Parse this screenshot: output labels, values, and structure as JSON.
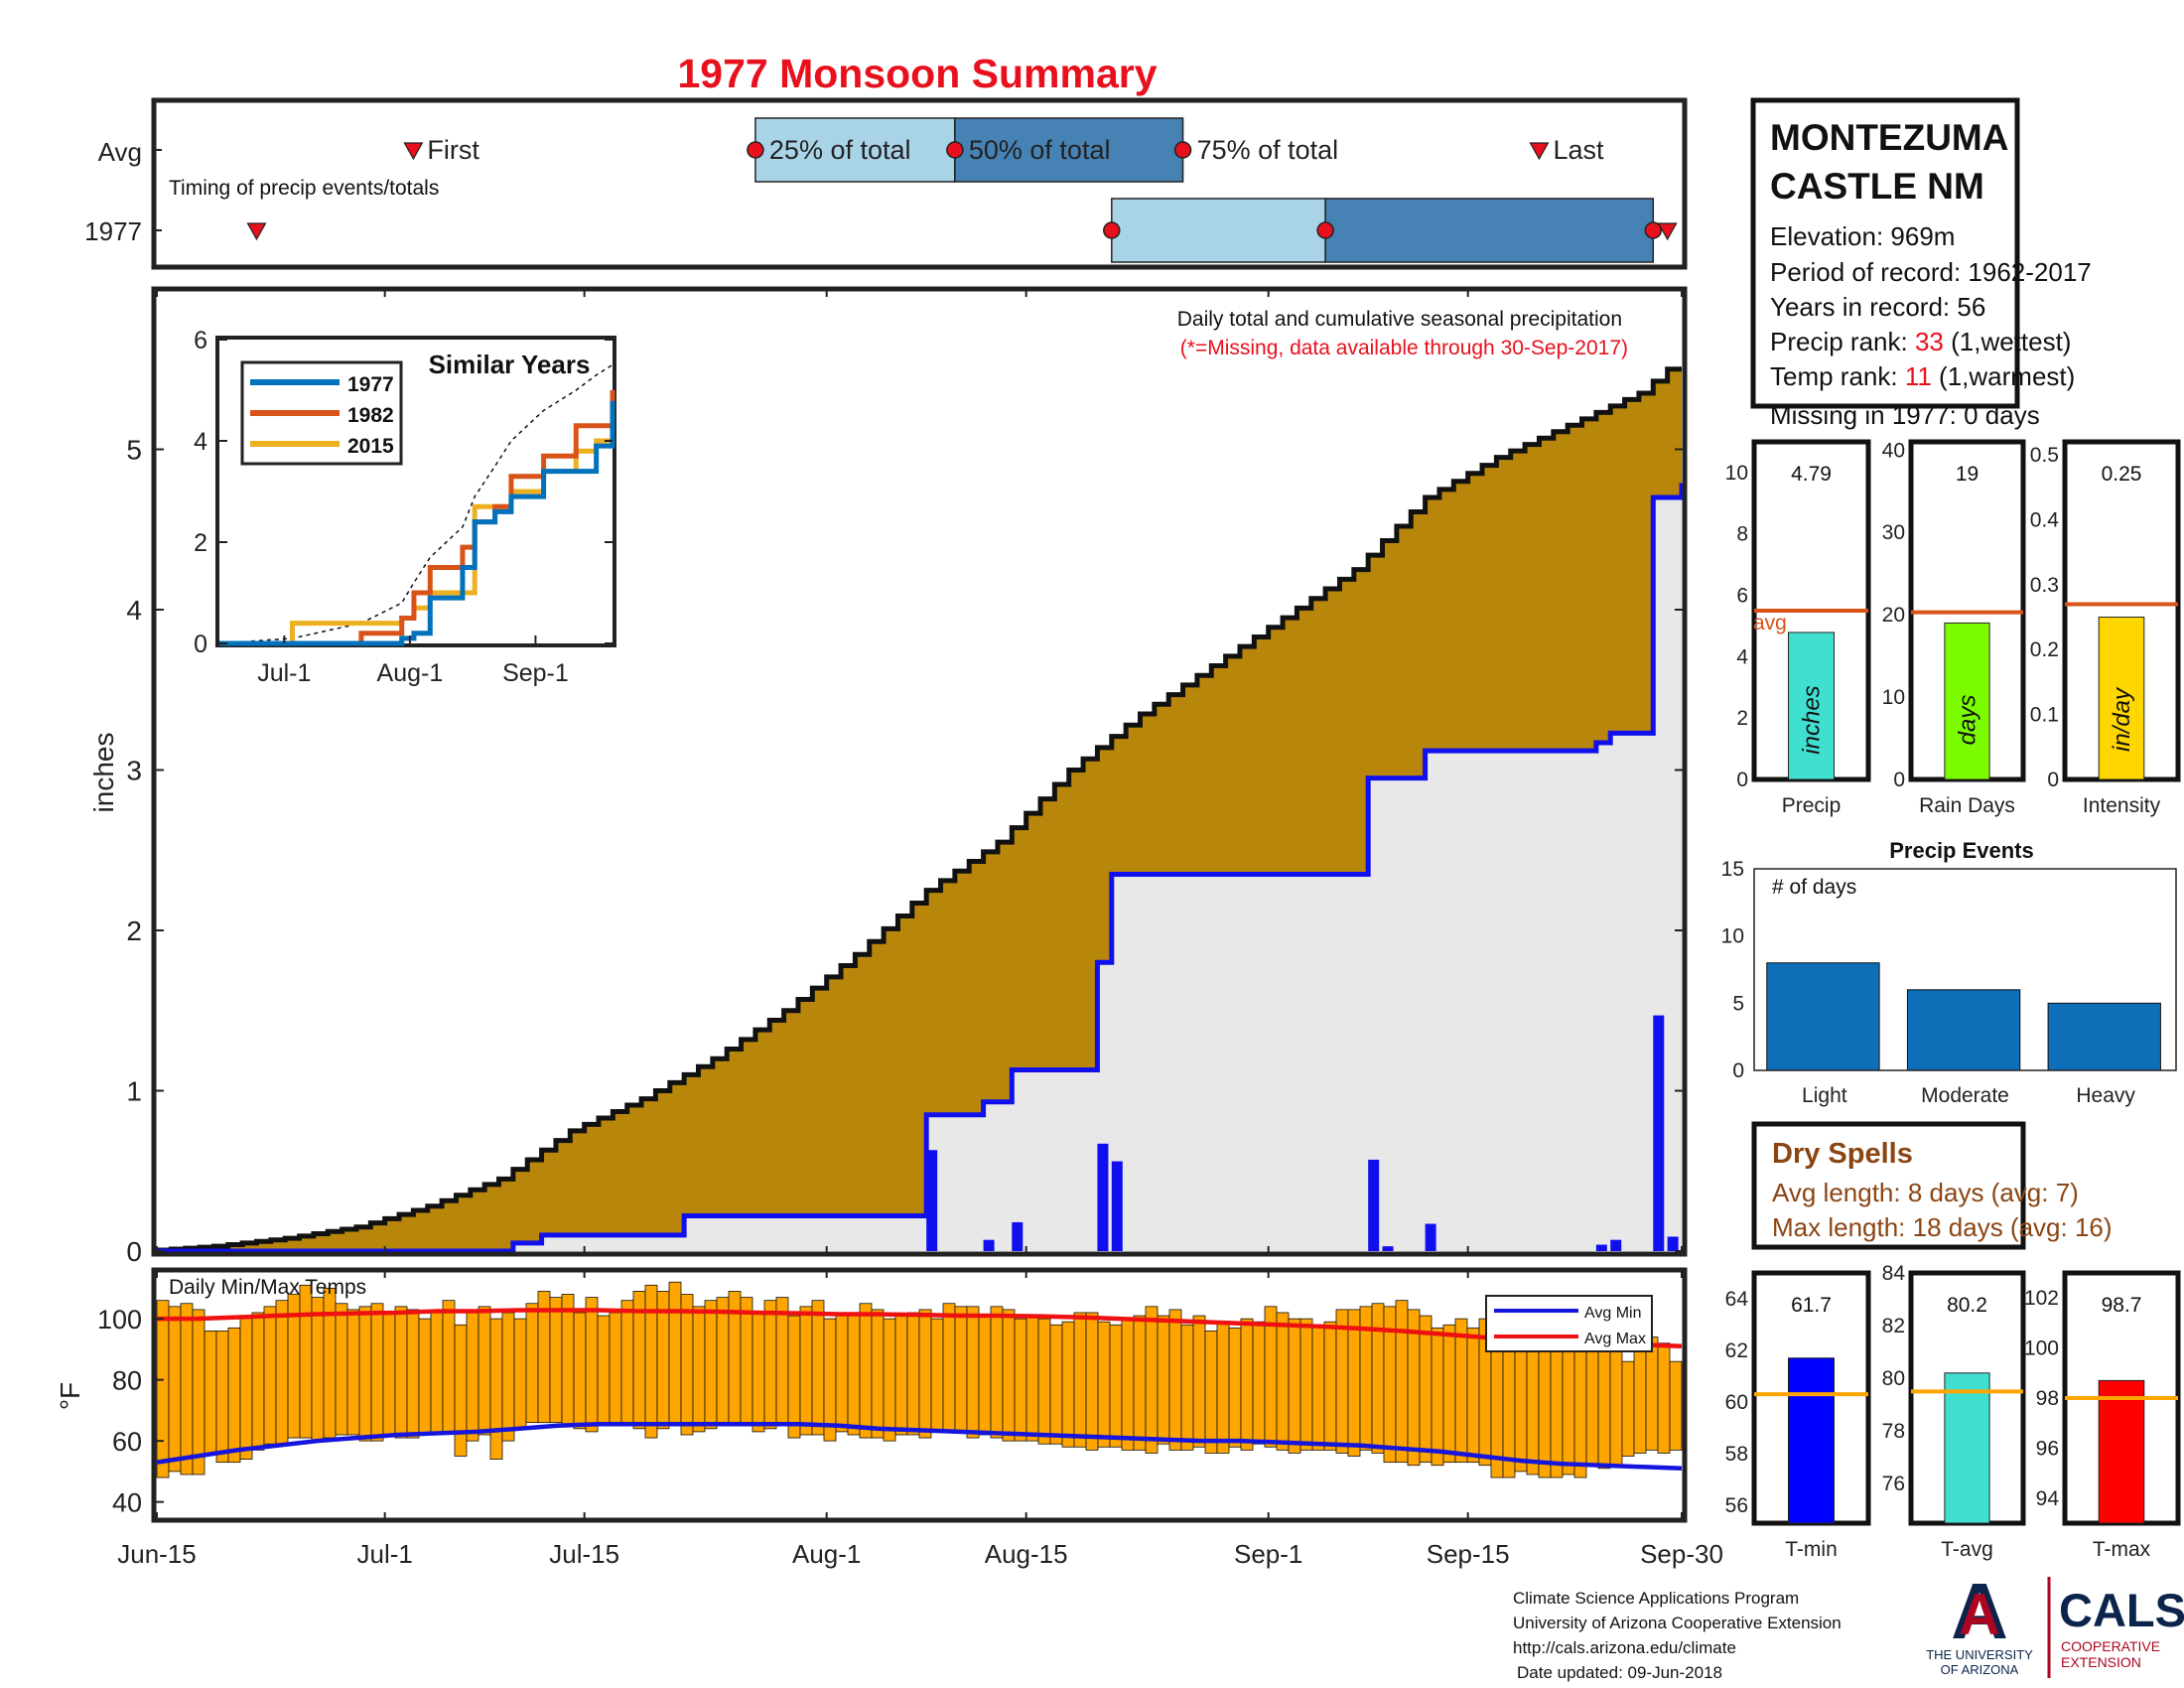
{
  "title": "1977 Monsoon Summary",
  "colors": {
    "title": "#e8101c",
    "accent_red": "#e8101c",
    "brown_fill": "#b8860b",
    "gray_fill": "#e8e8e8",
    "blue_line": "#1010ee",
    "timing_light": "#a9d4e8",
    "timing_dark": "#4682b4",
    "temp_bar": "#ffa500",
    "avg_max_line": "#ee1111",
    "avg_min_line": "#1515dd",
    "avg_marker": "#d95319",
    "dry_spell_text": "#8b4513",
    "event_bar": "#0e6fb8",
    "footer_blue": "#0c234b",
    "footer_red": "#ab0520",
    "sim_1977": "#0072bd",
    "sim_1982": "#d95319",
    "sim_2015": "#edb120"
  },
  "timing": {
    "row_labels": [
      "Avg",
      "1977"
    ],
    "caption": "Timing of precip events/totals",
    "first_label": "First",
    "q25_label": "25% of total",
    "q50_label": "50% of total",
    "q75_label": "75% of total",
    "last_label": "Last",
    "avg": {
      "first": "2017-07-03",
      "q25": "2017-07-27",
      "q50": "2017-08-10",
      "q75": "2017-08-26",
      "last": "2017-09-20"
    },
    "year": {
      "first": "2017-06-22",
      "q25": "2017-08-21",
      "q50": "2017-09-05",
      "q75": "2017-09-28",
      "last": "2017-09-29"
    }
  },
  "main_chart": {
    "subtitle": "Daily total and cumulative seasonal precipitation",
    "missing_note": "(*=Missing, data available through 30-Sep-2017)",
    "ylabel": "inches",
    "yticks": [
      "0",
      "1",
      "2",
      "3",
      "4",
      "5"
    ],
    "ylim": [
      0,
      6.0
    ],
    "xticks": [
      "Jun-15",
      "Jul-1",
      "Jul-15",
      "Aug-1",
      "Aug-15",
      "Sep-1",
      "Sep-15",
      "Sep-30"
    ]
  },
  "inset": {
    "title": "Similar Years",
    "yticks": [
      "0",
      "2",
      "4",
      "6"
    ],
    "xticks": [
      "Jul-1",
      "Aug-1",
      "Sep-1"
    ],
    "legend": [
      "1977",
      "1982",
      "2015"
    ]
  },
  "temps": {
    "label": "Daily Min/Max Temps",
    "ylabel": "°F",
    "yticks": [
      "40",
      "60",
      "80",
      "100"
    ],
    "ylim": [
      35,
      115
    ],
    "legend_min": "Avg Min",
    "legend_max": "Avg Max"
  },
  "station": {
    "name_line1": "MONTEZUMA",
    "name_line2": "CASTLE NM",
    "elevation": "Elevation: 969m",
    "period": "Period of record: 1962-2017",
    "years": "Years in record: 56",
    "precip_rank_label": "Precip rank: ",
    "precip_rank_value": "33",
    "precip_rank_suffix": " (1,wettest)",
    "temp_rank_label": "Temp rank: ",
    "temp_rank_value": "11",
    "temp_rank_suffix": " (1,warmest)",
    "missing": "Missing in 1977: 0 days"
  },
  "mini_precip": {
    "value_text": "4.79",
    "unit": "inches",
    "label": "Precip",
    "avg_label": "avg",
    "yticks": [
      "0",
      "2",
      "4",
      "6",
      "8",
      "10"
    ]
  },
  "mini_raindays": {
    "value_text": "19",
    "unit": "days",
    "label": "Rain Days",
    "yticks": [
      "0",
      "10",
      "20",
      "30",
      "40"
    ]
  },
  "mini_intensity": {
    "value_text": "0.25",
    "unit": "in/day",
    "label": "Intensity",
    "yticks": [
      "0",
      "0.1",
      "0.2",
      "0.3",
      "0.4",
      "0.5"
    ]
  },
  "precip_events": {
    "title": "Precip Events",
    "ylabel_text": "# of days",
    "yticks": [
      "0",
      "5",
      "10",
      "15"
    ],
    "categories": [
      "Light",
      "Moderate",
      "Heavy"
    ]
  },
  "dry_spells": {
    "title": "Dry Spells",
    "avg_length": "Avg length: 8 days (avg: 7)",
    "max_length": "Max length: 18 days (avg: 16)"
  },
  "mini_tmin": {
    "value_text": "61.7",
    "label": "T-min",
    "yticks": [
      "56",
      "58",
      "60",
      "62",
      "64"
    ]
  },
  "mini_tavg": {
    "value_text": "80.2",
    "label": "T-avg",
    "yticks": [
      "76",
      "78",
      "80",
      "82",
      "84"
    ]
  },
  "mini_tmax": {
    "value_text": "98.7",
    "label": "T-max",
    "yticks": [
      "94",
      "96",
      "98",
      "100",
      "102"
    ]
  },
  "footer": {
    "line1": "Climate Science Applications Program",
    "line2": "University of Arizona Cooperative Extension",
    "line3": "http://cals.arizona.edu/climate",
    "line4": "Date updated: 09-Jun-2018",
    "ua_letter": "A",
    "ua_text1": "THE UNIVERSITY",
    "ua_text2": "OF ARIZONA",
    "cals": "CALS",
    "cals_sub1": "COOPERATIVE",
    "cals_sub2": "EXTENSION"
  },
  "chart_data": [
    {
      "type": "area",
      "name": "Daily total and cumulative seasonal precipitation",
      "x_dates": [
        "2017-06-15",
        "2017-06-20",
        "2017-06-25",
        "2017-06-30",
        "2017-07-05",
        "2017-07-10",
        "2017-07-15",
        "2017-07-20",
        "2017-07-25",
        "2017-07-30",
        "2017-08-04",
        "2017-08-09",
        "2017-08-14",
        "2017-08-19",
        "2017-08-24",
        "2017-08-29",
        "2017-09-03",
        "2017-09-08",
        "2017-09-13",
        "2017-09-18",
        "2017-09-23",
        "2017-09-28",
        "2017-09-30"
      ],
      "avg_cumulative": [
        0.0,
        0.03,
        0.08,
        0.15,
        0.28,
        0.45,
        0.75,
        0.95,
        1.2,
        1.5,
        1.85,
        2.25,
        2.55,
        3.0,
        3.35,
        3.65,
        3.95,
        4.25,
        4.7,
        4.95,
        5.15,
        5.35,
        5.5
      ],
      "year_cumulative_steps": [
        [
          "2017-06-15",
          0.0
        ],
        [
          "2017-07-10",
          0.05
        ],
        [
          "2017-07-12",
          0.1
        ],
        [
          "2017-07-22",
          0.22
        ],
        [
          "2017-08-08",
          0.85
        ],
        [
          "2017-08-12",
          0.93
        ],
        [
          "2017-08-14",
          1.13
        ],
        [
          "2017-08-20",
          1.8
        ],
        [
          "2017-08-21",
          2.35
        ],
        [
          "2017-09-08",
          2.95
        ],
        [
          "2017-09-12",
          3.12
        ],
        [
          "2017-09-24",
          3.17
        ],
        [
          "2017-09-25",
          3.23
        ],
        [
          "2017-09-28",
          4.7
        ],
        [
          "2017-09-30",
          4.79
        ]
      ],
      "daily_bars": [
        [
          "2017-08-08",
          0.63
        ],
        [
          "2017-08-12",
          0.07
        ],
        [
          "2017-08-14",
          0.18
        ],
        [
          "2017-08-20",
          0.67
        ],
        [
          "2017-08-21",
          0.56
        ],
        [
          "2017-09-08",
          0.57
        ],
        [
          "2017-09-09",
          0.03
        ],
        [
          "2017-09-12",
          0.17
        ],
        [
          "2017-09-24",
          0.04
        ],
        [
          "2017-09-25",
          0.07
        ],
        [
          "2017-09-28",
          1.47
        ],
        [
          "2017-09-29",
          0.09
        ]
      ],
      "ylim": [
        0,
        6.0
      ]
    },
    {
      "type": "line",
      "name": "Similar Years",
      "x_days": [
        0,
        18,
        35,
        45,
        48,
        52,
        60,
        63,
        68,
        72,
        80,
        88,
        93,
        97
      ],
      "series": [
        {
          "name": "1977",
          "values": [
            0,
            0,
            0,
            0.1,
            0.2,
            0.9,
            1.5,
            2.4,
            2.6,
            2.9,
            3.4,
            3.4,
            3.9,
            4.79
          ]
        },
        {
          "name": "1982",
          "values": [
            0,
            0,
            0.2,
            0.5,
            1.0,
            1.5,
            1.9,
            2.4,
            2.7,
            3.3,
            3.7,
            4.3,
            4.3,
            5.0
          ]
        },
        {
          "name": "2015",
          "values": [
            0,
            0.4,
            0.4,
            0.5,
            0.7,
            1.0,
            1.0,
            2.7,
            2.7,
            3.0,
            3.4,
            3.8,
            4.0,
            4.3
          ]
        }
      ],
      "avg_dashed": [
        0,
        0.1,
        0.4,
        0.8,
        1.2,
        1.7,
        2.3,
        2.9,
        3.5,
        4.0,
        4.6,
        5.0,
        5.3,
        5.5
      ],
      "ylim": [
        0,
        6
      ],
      "legend": "top-left"
    },
    {
      "type": "bar",
      "name": "Daily Min/Max Temps",
      "x_start": "2017-06-15",
      "tmin": [
        48,
        50,
        49,
        49,
        56,
        53,
        53,
        54,
        57,
        59,
        59,
        61,
        61,
        60,
        61,
        62,
        62,
        60,
        60,
        62,
        61,
        61,
        62,
        62,
        63,
        55,
        60,
        62,
        54,
        60,
        64,
        66,
        66,
        66,
        65,
        64,
        63,
        65,
        66,
        66,
        64,
        61,
        64,
        65,
        62,
        63,
        64,
        65,
        66,
        66,
        63,
        64,
        65,
        61,
        62,
        62,
        60,
        63,
        62,
        61,
        61,
        60,
        62,
        62,
        61,
        63,
        63,
        63,
        61,
        62,
        61,
        60,
        60,
        60,
        59,
        59,
        58,
        58,
        57,
        58,
        58,
        57,
        57,
        56,
        59,
        57,
        57,
        58,
        56,
        56,
        58,
        57,
        59,
        58,
        57,
        56,
        57,
        57,
        57,
        56,
        55,
        57,
        56,
        53,
        53,
        52,
        53,
        52,
        53,
        53,
        53,
        52,
        48,
        48,
        50,
        49,
        48,
        48,
        49,
        48,
        52,
        51,
        52,
        55,
        56,
        57,
        56,
        57
      ],
      "tmax": [
        106,
        104,
        105,
        103,
        96,
        96,
        97,
        101,
        102,
        104,
        106,
        108,
        111,
        107,
        110,
        105,
        103,
        104,
        105,
        102,
        104,
        103,
        100,
        102,
        106,
        98,
        103,
        104,
        100,
        102,
        100,
        105,
        109,
        107,
        108,
        102,
        107,
        101,
        102,
        106,
        109,
        111,
        109,
        112,
        108,
        104,
        106,
        107,
        109,
        107,
        102,
        106,
        107,
        101,
        104,
        106,
        100,
        102,
        101,
        105,
        103,
        100,
        101,
        102,
        103,
        100,
        105,
        104,
        104,
        101,
        104,
        103,
        100,
        101,
        100,
        98,
        99,
        102,
        102,
        99,
        98,
        100,
        101,
        104,
        101,
        103,
        98,
        101,
        96,
        99,
        97,
        100,
        99,
        104,
        102,
        100,
        100,
        98,
        99,
        103,
        103,
        104,
        105,
        104,
        106,
        103,
        101,
        97,
        98,
        100,
        97,
        100,
        96,
        93,
        96,
        95,
        93,
        98,
        97,
        92,
        95,
        97,
        92,
        86,
        95,
        94,
        92,
        86
      ],
      "avg_max": [
        100,
        100,
        100.5,
        101,
        101.5,
        101.8,
        102,
        102.5,
        102.5,
        102.8,
        102.8,
        102.8,
        102.5,
        102.5,
        102.3,
        102,
        101.8,
        101.5,
        101.5,
        101.3,
        101,
        101,
        100.8,
        100.5,
        100,
        99.5,
        99,
        98.5,
        98,
        97.5,
        96.8,
        96,
        95,
        94,
        93.5,
        92.5,
        92,
        91.5,
        91
      ],
      "avg_min": [
        53,
        55,
        57,
        58.5,
        60,
        61,
        62,
        62.5,
        63,
        64,
        65,
        65.5,
        65.5,
        65.5,
        65.5,
        65.5,
        65.5,
        65,
        64,
        63.5,
        63,
        62.5,
        62,
        61.5,
        61,
        60.5,
        60,
        60,
        59.5,
        59,
        58.5,
        57.5,
        56.5,
        55,
        53.5,
        52.5,
        52,
        51.5,
        51
      ],
      "ylim": [
        35,
        115
      ],
      "legend": "top-right"
    },
    {
      "type": "bar",
      "name": "Precip",
      "values": [
        4.79
      ],
      "avg": 5.5,
      "ylim": [
        0,
        11
      ]
    },
    {
      "type": "bar",
      "name": "Rain Days",
      "values": [
        19
      ],
      "avg": 20.3,
      "ylim": [
        0,
        41
      ]
    },
    {
      "type": "bar",
      "name": "Intensity",
      "values": [
        0.25
      ],
      "avg": 0.27,
      "ylim": [
        0,
        0.52
      ]
    },
    {
      "type": "bar",
      "name": "Precip Events",
      "categories": [
        "Light",
        "Moderate",
        "Heavy"
      ],
      "values": [
        8,
        6,
        5
      ],
      "ylim": [
        0,
        15
      ]
    },
    {
      "type": "bar",
      "name": "T-min",
      "values": [
        61.7
      ],
      "avg": 60.3,
      "ylim": [
        55.3,
        65
      ]
    },
    {
      "type": "bar",
      "name": "T-avg",
      "values": [
        80.2
      ],
      "avg": 79.5,
      "ylim": [
        74.5,
        84
      ]
    },
    {
      "type": "bar",
      "name": "T-max",
      "values": [
        98.7
      ],
      "avg": 98.0,
      "ylim": [
        93,
        103
      ]
    }
  ]
}
